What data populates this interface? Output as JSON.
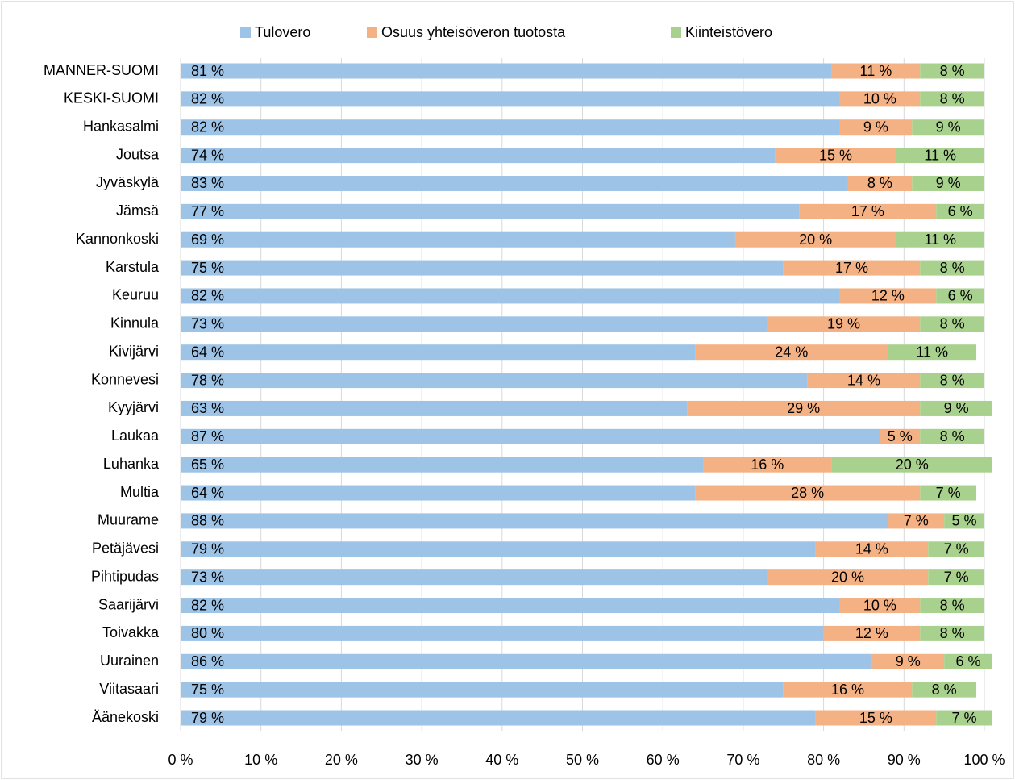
{
  "chart_data": {
    "type": "stacked_bar_horizontal",
    "categories": [
      "MANNER-SUOMI",
      "KESKI-SUOMI",
      "Hankasalmi",
      "Joutsa",
      "Jyväskylä",
      "Jämsä",
      "Kannonkoski",
      "Karstula",
      "Keuruu",
      "Kinnula",
      "Kivijärvi",
      "Konnevesi",
      "Kyyjärvi",
      "Laukaa",
      "Luhanka",
      "Multia",
      "Muurame",
      "Petäjävesi",
      "Pihtipudas",
      "Saarijärvi",
      "Toivakka",
      "Uurainen",
      "Viitasaari",
      "Äänekoski"
    ],
    "series": [
      {
        "name": "Tulovero",
        "color": "#9dc3e6",
        "values": [
          81,
          82,
          82,
          74,
          83,
          77,
          69,
          75,
          82,
          73,
          64,
          78,
          63,
          87,
          65,
          64,
          88,
          79,
          73,
          82,
          80,
          86,
          75,
          79
        ],
        "value_labels": [
          "81 %",
          "82 %",
          "82 %",
          "74 %",
          "83 %",
          "77 %",
          "69 %",
          "75 %",
          "82 %",
          "73 %",
          "64 %",
          "78 %",
          "63 %",
          "87 %",
          "65 %",
          "64 %",
          "88 %",
          "79 %",
          "73 %",
          "82 %",
          "80 %",
          "86 %",
          "75 %",
          "79 %"
        ]
      },
      {
        "name": "Osuus yhteisöveron tuotosta",
        "color": "#f4b183",
        "values": [
          11,
          10,
          9,
          15,
          8,
          17,
          20,
          17,
          12,
          19,
          24,
          14,
          29,
          5,
          16,
          28,
          7,
          14,
          20,
          10,
          12,
          9,
          16,
          15
        ],
        "value_labels": [
          "11 %",
          "10 %",
          "9 %",
          "15 %",
          "8 %",
          "17 %",
          "20 %",
          "17 %",
          "12 %",
          "19 %",
          "24 %",
          "14 %",
          "29 %",
          "5 %",
          "16 %",
          "28 %",
          "7 %",
          "14 %",
          "20 %",
          "10 %",
          "12 %",
          "9 %",
          "16 %",
          "15 %"
        ]
      },
      {
        "name": "Kiinteistövero",
        "color": "#a9d18e",
        "values": [
          8,
          8,
          9,
          11,
          9,
          6,
          11,
          8,
          6,
          8,
          11,
          8,
          9,
          8,
          20,
          7,
          5,
          7,
          7,
          8,
          8,
          6,
          8,
          7
        ],
        "value_labels": [
          "8 %",
          "8 %",
          "9 %",
          "11 %",
          "9 %",
          "6 %",
          "11 %",
          "8 %",
          "6 %",
          "8 %",
          "11 %",
          "8 %",
          "9 %",
          "8 %",
          "20 %",
          "7 %",
          "5 %",
          "7 %",
          "7 %",
          "8 %",
          "8 %",
          "6 %",
          "8 %",
          "7 %"
        ]
      }
    ],
    "xlim": [
      0,
      100
    ],
    "xticks": [
      {
        "value": 0,
        "label": "0 %"
      },
      {
        "value": 10,
        "label": "10 %"
      },
      {
        "value": 20,
        "label": "20 %"
      },
      {
        "value": 30,
        "label": "30 %"
      },
      {
        "value": 40,
        "label": "40 %"
      },
      {
        "value": 50,
        "label": "50 %"
      },
      {
        "value": 60,
        "label": "60 %"
      },
      {
        "value": 70,
        "label": "70 %"
      },
      {
        "value": 80,
        "label": "80 %"
      },
      {
        "value": 90,
        "label": "90 %"
      },
      {
        "value": 100,
        "label": "100 %"
      }
    ],
    "grid": true,
    "legend": "top"
  }
}
